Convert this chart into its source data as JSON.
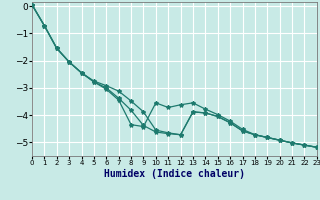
{
  "xlabel": "Humidex (Indice chaleur)",
  "bg_color": "#c8eae6",
  "grid_color": "#ffffff",
  "line_color": "#1e7a6e",
  "xlim": [
    0,
    23
  ],
  "ylim": [
    -5.5,
    0.15
  ],
  "xticks": [
    0,
    1,
    2,
    3,
    4,
    5,
    6,
    7,
    8,
    9,
    10,
    11,
    12,
    13,
    14,
    15,
    16,
    17,
    18,
    19,
    20,
    21,
    22,
    23
  ],
  "yticks": [
    0,
    -1,
    -2,
    -3,
    -4,
    -5
  ],
  "line_top": [
    0.05,
    -0.72,
    -1.55,
    -2.05,
    -2.45,
    -2.75,
    -2.92,
    -3.12,
    -3.48,
    -3.88,
    -4.55,
    -4.65,
    -4.72,
    -3.88,
    -3.92,
    -4.05,
    -4.28,
    -4.58,
    -4.72,
    -4.82,
    -4.92,
    -5.02,
    -5.1,
    -5.18
  ],
  "line_mid": [
    0.05,
    -0.72,
    -1.55,
    -2.05,
    -2.45,
    -2.78,
    -3.0,
    -3.38,
    -3.82,
    -4.38,
    -4.62,
    -4.68,
    -4.72,
    -3.88,
    -3.92,
    -4.05,
    -4.28,
    -4.58,
    -4.72,
    -4.82,
    -4.92,
    -5.02,
    -5.1,
    -5.18
  ],
  "line_bot": [
    0.05,
    -0.72,
    -1.55,
    -2.05,
    -2.45,
    -2.78,
    -3.05,
    -3.45,
    -4.35,
    -4.42,
    -3.55,
    -3.72,
    -3.62,
    -3.55,
    -3.78,
    -3.98,
    -4.22,
    -4.52,
    -4.72,
    -4.82,
    -4.92,
    -5.02,
    -5.1,
    -5.18
  ]
}
